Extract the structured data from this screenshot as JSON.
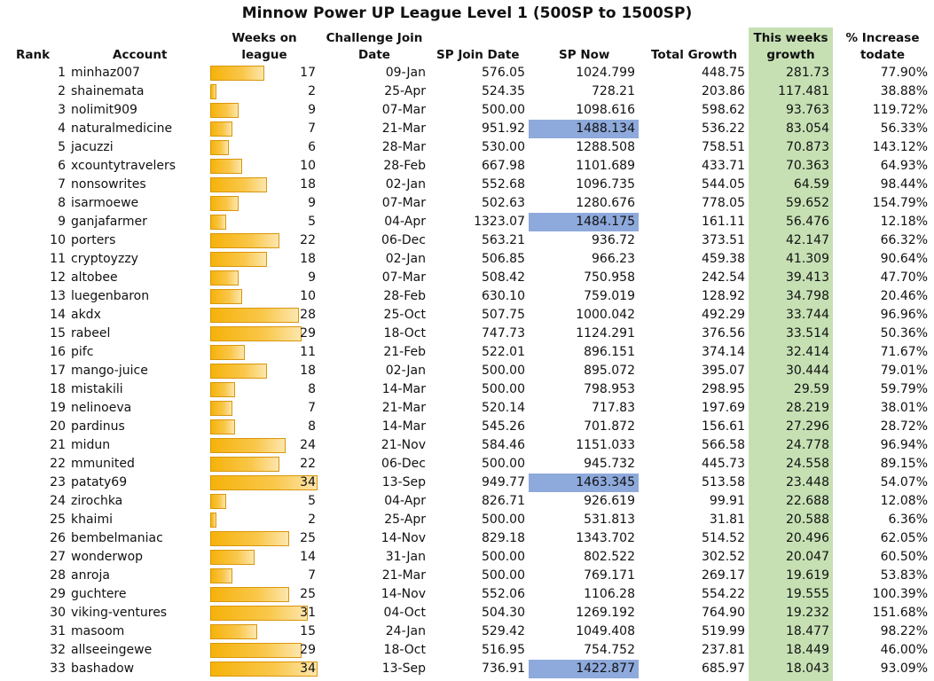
{
  "title": "Minnow Power UP League Level 1 (500SP to 1500SP)",
  "headers": {
    "rank": "Rank",
    "account": "Account",
    "weeks_line1": "Weeks on",
    "weeks_line2": "league",
    "join_line1": "Challenge Join",
    "join_line2": "Date",
    "sp_join": "SP Join Date",
    "sp_now": "SP Now",
    "total_growth": "Total Growth",
    "week_line1": "This weeks",
    "week_line2": "growth",
    "pct_line1": "% Increase",
    "pct_line2": "todate"
  },
  "colors": {
    "this_week_column": "#c6e0b4",
    "sp_now_highlight": "#8ea9db",
    "weeks_bar": "#f6b20a"
  },
  "weeks_bar_max": 34,
  "rows": [
    {
      "rank": "1",
      "account": "minhaz007",
      "weeks": 17,
      "weeks_label": "17",
      "join_date": "09-Jan",
      "sp_join": "576.05",
      "sp_now": "1024.799",
      "sp_now_highlight": false,
      "total_growth": "448.75",
      "this_week": "281.73",
      "pct": "77.90%"
    },
    {
      "rank": "2",
      "account": "shainemata",
      "weeks": 2,
      "weeks_label": "2",
      "join_date": "25-Apr",
      "sp_join": "524.35",
      "sp_now": "728.21",
      "sp_now_highlight": false,
      "total_growth": "203.86",
      "this_week": "117.481",
      "pct": "38.88%"
    },
    {
      "rank": "3",
      "account": "nolimit909",
      "weeks": 9,
      "weeks_label": "9",
      "join_date": "07-Mar",
      "sp_join": "500.00",
      "sp_now": "1098.616",
      "sp_now_highlight": false,
      "total_growth": "598.62",
      "this_week": "93.763",
      "pct": "119.72%"
    },
    {
      "rank": "4",
      "account": "naturalmedicine",
      "weeks": 7,
      "weeks_label": "7",
      "join_date": "21-Mar",
      "sp_join": "951.92",
      "sp_now": "1488.134",
      "sp_now_highlight": true,
      "total_growth": "536.22",
      "this_week": "83.054",
      "pct": "56.33%"
    },
    {
      "rank": "5",
      "account": "jacuzzi",
      "weeks": 6,
      "weeks_label": "6",
      "join_date": "28-Mar",
      "sp_join": "530.00",
      "sp_now": "1288.508",
      "sp_now_highlight": false,
      "total_growth": "758.51",
      "this_week": "70.873",
      "pct": "143.12%"
    },
    {
      "rank": "6",
      "account": "xcountytravelers",
      "weeks": 10,
      "weeks_label": "10",
      "join_date": "28-Feb",
      "sp_join": "667.98",
      "sp_now": "1101.689",
      "sp_now_highlight": false,
      "total_growth": "433.71",
      "this_week": "70.363",
      "pct": "64.93%"
    },
    {
      "rank": "7",
      "account": "nonsowrites",
      "weeks": 18,
      "weeks_label": "18",
      "join_date": "02-Jan",
      "sp_join": "552.68",
      "sp_now": "1096.735",
      "sp_now_highlight": false,
      "total_growth": "544.05",
      "this_week": "64.59",
      "pct": "98.44%"
    },
    {
      "rank": "8",
      "account": "isarmoewe",
      "weeks": 9,
      "weeks_label": "9",
      "join_date": "07-Mar",
      "sp_join": "502.63",
      "sp_now": "1280.676",
      "sp_now_highlight": false,
      "total_growth": "778.05",
      "this_week": "59.652",
      "pct": "154.79%"
    },
    {
      "rank": "9",
      "account": "ganjafarmer",
      "weeks": 5,
      "weeks_label": "5",
      "join_date": "04-Apr",
      "sp_join": "1323.07",
      "sp_now": "1484.175",
      "sp_now_highlight": true,
      "total_growth": "161.11",
      "this_week": "56.476",
      "pct": "12.18%"
    },
    {
      "rank": "10",
      "account": "porters",
      "weeks": 22,
      "weeks_label": "22",
      "join_date": "06-Dec",
      "sp_join": "563.21",
      "sp_now": "936.72",
      "sp_now_highlight": false,
      "total_growth": "373.51",
      "this_week": "42.147",
      "pct": "66.32%"
    },
    {
      "rank": "11",
      "account": "cryptoyzzy",
      "weeks": 18,
      "weeks_label": "18",
      "join_date": "02-Jan",
      "sp_join": "506.85",
      "sp_now": "966.23",
      "sp_now_highlight": false,
      "total_growth": "459.38",
      "this_week": "41.309",
      "pct": "90.64%"
    },
    {
      "rank": "12",
      "account": "altobee",
      "weeks": 9,
      "weeks_label": "9",
      "join_date": "07-Mar",
      "sp_join": "508.42",
      "sp_now": "750.958",
      "sp_now_highlight": false,
      "total_growth": "242.54",
      "this_week": "39.413",
      "pct": "47.70%"
    },
    {
      "rank": "13",
      "account": "luegenbaron",
      "weeks": 10,
      "weeks_label": "10",
      "join_date": "28-Feb",
      "sp_join": "630.10",
      "sp_now": "759.019",
      "sp_now_highlight": false,
      "total_growth": "128.92",
      "this_week": "34.798",
      "pct": "20.46%"
    },
    {
      "rank": "14",
      "account": "akdx",
      "weeks": 28,
      "weeks_label": "28",
      "join_date": "25-Oct",
      "sp_join": "507.75",
      "sp_now": "1000.042",
      "sp_now_highlight": false,
      "total_growth": "492.29",
      "this_week": "33.744",
      "pct": "96.96%"
    },
    {
      "rank": "15",
      "account": "rabeel",
      "weeks": 29,
      "weeks_label": "29",
      "join_date": "18-Oct",
      "sp_join": "747.73",
      "sp_now": "1124.291",
      "sp_now_highlight": false,
      "total_growth": "376.56",
      "this_week": "33.514",
      "pct": "50.36%"
    },
    {
      "rank": "16",
      "account": "pifc",
      "weeks": 11,
      "weeks_label": "11",
      "join_date": "21-Feb",
      "sp_join": "522.01",
      "sp_now": "896.151",
      "sp_now_highlight": false,
      "total_growth": "374.14",
      "this_week": "32.414",
      "pct": "71.67%"
    },
    {
      "rank": "17",
      "account": "mango-juice",
      "weeks": 18,
      "weeks_label": "18",
      "join_date": "02-Jan",
      "sp_join": "500.00",
      "sp_now": "895.072",
      "sp_now_highlight": false,
      "total_growth": "395.07",
      "this_week": "30.444",
      "pct": "79.01%"
    },
    {
      "rank": "18",
      "account": "mistakili",
      "weeks": 8,
      "weeks_label": "8",
      "join_date": "14-Mar",
      "sp_join": "500.00",
      "sp_now": "798.953",
      "sp_now_highlight": false,
      "total_growth": "298.95",
      "this_week": "29.59",
      "pct": "59.79%"
    },
    {
      "rank": "19",
      "account": "nelinoeva",
      "weeks": 7,
      "weeks_label": "7",
      "join_date": "21-Mar",
      "sp_join": "520.14",
      "sp_now": "717.83",
      "sp_now_highlight": false,
      "total_growth": "197.69",
      "this_week": "28.219",
      "pct": "38.01%"
    },
    {
      "rank": "20",
      "account": "pardinus",
      "weeks": 8,
      "weeks_label": "8",
      "join_date": "14-Mar",
      "sp_join": "545.26",
      "sp_now": "701.872",
      "sp_now_highlight": false,
      "total_growth": "156.61",
      "this_week": "27.296",
      "pct": "28.72%"
    },
    {
      "rank": "21",
      "account": "midun",
      "weeks": 24,
      "weeks_label": "24",
      "join_date": "21-Nov",
      "sp_join": "584.46",
      "sp_now": "1151.033",
      "sp_now_highlight": false,
      "total_growth": "566.58",
      "this_week": "24.778",
      "pct": "96.94%"
    },
    {
      "rank": "22",
      "account": "mmunited",
      "weeks": 22,
      "weeks_label": "22",
      "join_date": "06-Dec",
      "sp_join": "500.00",
      "sp_now": "945.732",
      "sp_now_highlight": false,
      "total_growth": "445.73",
      "this_week": "24.558",
      "pct": "89.15%"
    },
    {
      "rank": "23",
      "account": "pataty69",
      "weeks": 34,
      "weeks_label": "34",
      "join_date": "13-Sep",
      "sp_join": "949.77",
      "sp_now": "1463.345",
      "sp_now_highlight": true,
      "total_growth": "513.58",
      "this_week": "23.448",
      "pct": "54.07%"
    },
    {
      "rank": "24",
      "account": "zirochka",
      "weeks": 5,
      "weeks_label": "5",
      "join_date": "04-Apr",
      "sp_join": "826.71",
      "sp_now": "926.619",
      "sp_now_highlight": false,
      "total_growth": "99.91",
      "this_week": "22.688",
      "pct": "12.08%"
    },
    {
      "rank": "25",
      "account": "khaimi",
      "weeks": 2,
      "weeks_label": "2",
      "join_date": "25-Apr",
      "sp_join": "500.00",
      "sp_now": "531.813",
      "sp_now_highlight": false,
      "total_growth": "31.81",
      "this_week": "20.588",
      "pct": "6.36%"
    },
    {
      "rank": "26",
      "account": "bembelmaniac",
      "weeks": 25,
      "weeks_label": "25",
      "join_date": "14-Nov",
      "sp_join": "829.18",
      "sp_now": "1343.702",
      "sp_now_highlight": false,
      "total_growth": "514.52",
      "this_week": "20.496",
      "pct": "62.05%"
    },
    {
      "rank": "27",
      "account": "wonderwop",
      "weeks": 14,
      "weeks_label": "14",
      "join_date": "31-Jan",
      "sp_join": "500.00",
      "sp_now": "802.522",
      "sp_now_highlight": false,
      "total_growth": "302.52",
      "this_week": "20.047",
      "pct": "60.50%"
    },
    {
      "rank": "28",
      "account": "anroja",
      "weeks": 7,
      "weeks_label": "7",
      "join_date": "21-Mar",
      "sp_join": "500.00",
      "sp_now": "769.171",
      "sp_now_highlight": false,
      "total_growth": "269.17",
      "this_week": "19.619",
      "pct": "53.83%"
    },
    {
      "rank": "29",
      "account": "guchtere",
      "weeks": 25,
      "weeks_label": "25",
      "join_date": "14-Nov",
      "sp_join": "552.06",
      "sp_now": "1106.28",
      "sp_now_highlight": false,
      "total_growth": "554.22",
      "this_week": "19.555",
      "pct": "100.39%"
    },
    {
      "rank": "30",
      "account": "viking-ventures",
      "weeks": 31,
      "weeks_label": "31",
      "join_date": "04-Oct",
      "sp_join": "504.30",
      "sp_now": "1269.192",
      "sp_now_highlight": false,
      "total_growth": "764.90",
      "this_week": "19.232",
      "pct": "151.68%"
    },
    {
      "rank": "31",
      "account": "masoom",
      "weeks": 15,
      "weeks_label": "15",
      "join_date": "24-Jan",
      "sp_join": "529.42",
      "sp_now": "1049.408",
      "sp_now_highlight": false,
      "total_growth": "519.99",
      "this_week": "18.477",
      "pct": "98.22%"
    },
    {
      "rank": "32",
      "account": "allseeingewe",
      "weeks": 29,
      "weeks_label": "29",
      "join_date": "18-Oct",
      "sp_join": "516.95",
      "sp_now": "754.752",
      "sp_now_highlight": false,
      "total_growth": "237.81",
      "this_week": "18.449",
      "pct": "46.00%"
    },
    {
      "rank": "33",
      "account": "bashadow",
      "weeks": 34,
      "weeks_label": "34",
      "join_date": "13-Sep",
      "sp_join": "736.91",
      "sp_now": "1422.877",
      "sp_now_highlight": true,
      "total_growth": "685.97",
      "this_week": "18.043",
      "pct": "93.09%"
    }
  ]
}
